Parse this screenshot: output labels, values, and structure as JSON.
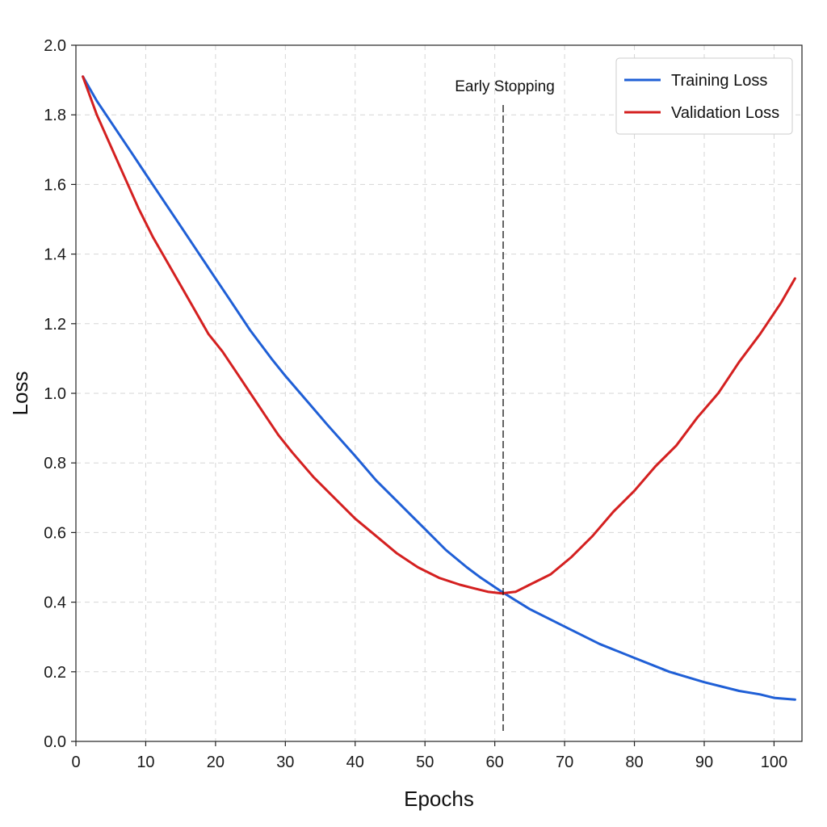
{
  "chart_data": {
    "type": "line",
    "xlabel": "Epochs",
    "ylabel": "Loss",
    "xlim": [
      0,
      104
    ],
    "ylim": [
      0,
      2.0
    ],
    "x_ticks": [
      0,
      10,
      20,
      30,
      40,
      50,
      60,
      70,
      80,
      90,
      100
    ],
    "y_ticks": [
      0.0,
      0.2,
      0.4,
      0.6,
      0.8,
      1.0,
      1.2,
      1.4,
      1.6,
      1.8,
      2.0
    ],
    "x_tick_labels": [
      "0",
      "10",
      "20",
      "30",
      "40",
      "50",
      "60",
      "70",
      "80",
      "90",
      "100"
    ],
    "y_tick_labels": [
      "0.0",
      "0.2",
      "0.4",
      "0.6",
      "0.8",
      "1.0",
      "1.2",
      "1.4",
      "1.6",
      "1.8",
      "2.0"
    ],
    "grid": true,
    "legend_position": "top-right",
    "series": [
      {
        "name": "Training Loss",
        "color": "#1f5fd6",
        "x": [
          1,
          3,
          5,
          8,
          10,
          12,
          15,
          18,
          20,
          22,
          25,
          28,
          30,
          33,
          36,
          40,
          43,
          46,
          50,
          53,
          56,
          58,
          61,
          65,
          70,
          75,
          80,
          85,
          90,
          95,
          98,
          100,
          103
        ],
        "y": [
          1.91,
          1.84,
          1.78,
          1.69,
          1.63,
          1.57,
          1.48,
          1.39,
          1.33,
          1.27,
          1.18,
          1.1,
          1.05,
          0.98,
          0.91,
          0.82,
          0.75,
          0.69,
          0.61,
          0.55,
          0.5,
          0.47,
          0.43,
          0.38,
          0.33,
          0.28,
          0.24,
          0.2,
          0.17,
          0.145,
          0.135,
          0.125,
          0.12
        ]
      },
      {
        "name": "Validation Loss",
        "color": "#d42020",
        "x": [
          1,
          3,
          5,
          7,
          9,
          11,
          13,
          15,
          17,
          19,
          21,
          23,
          25,
          27,
          29,
          31,
          34,
          37,
          40,
          43,
          46,
          49,
          52,
          55,
          57,
          59,
          61,
          63,
          65,
          68,
          71,
          74,
          77,
          80,
          83,
          86,
          89,
          92,
          95,
          98,
          101,
          103
        ],
        "y": [
          1.91,
          1.8,
          1.71,
          1.62,
          1.53,
          1.45,
          1.38,
          1.31,
          1.24,
          1.17,
          1.12,
          1.06,
          1.0,
          0.94,
          0.88,
          0.83,
          0.76,
          0.7,
          0.64,
          0.59,
          0.54,
          0.5,
          0.47,
          0.45,
          0.44,
          0.43,
          0.425,
          0.43,
          0.45,
          0.48,
          0.53,
          0.59,
          0.66,
          0.72,
          0.79,
          0.85,
          0.93,
          1.0,
          1.09,
          1.17,
          1.26,
          1.33
        ]
      }
    ],
    "annotations": [
      {
        "text": "Early Stopping",
        "x": 61.2,
        "type": "vline"
      }
    ]
  }
}
